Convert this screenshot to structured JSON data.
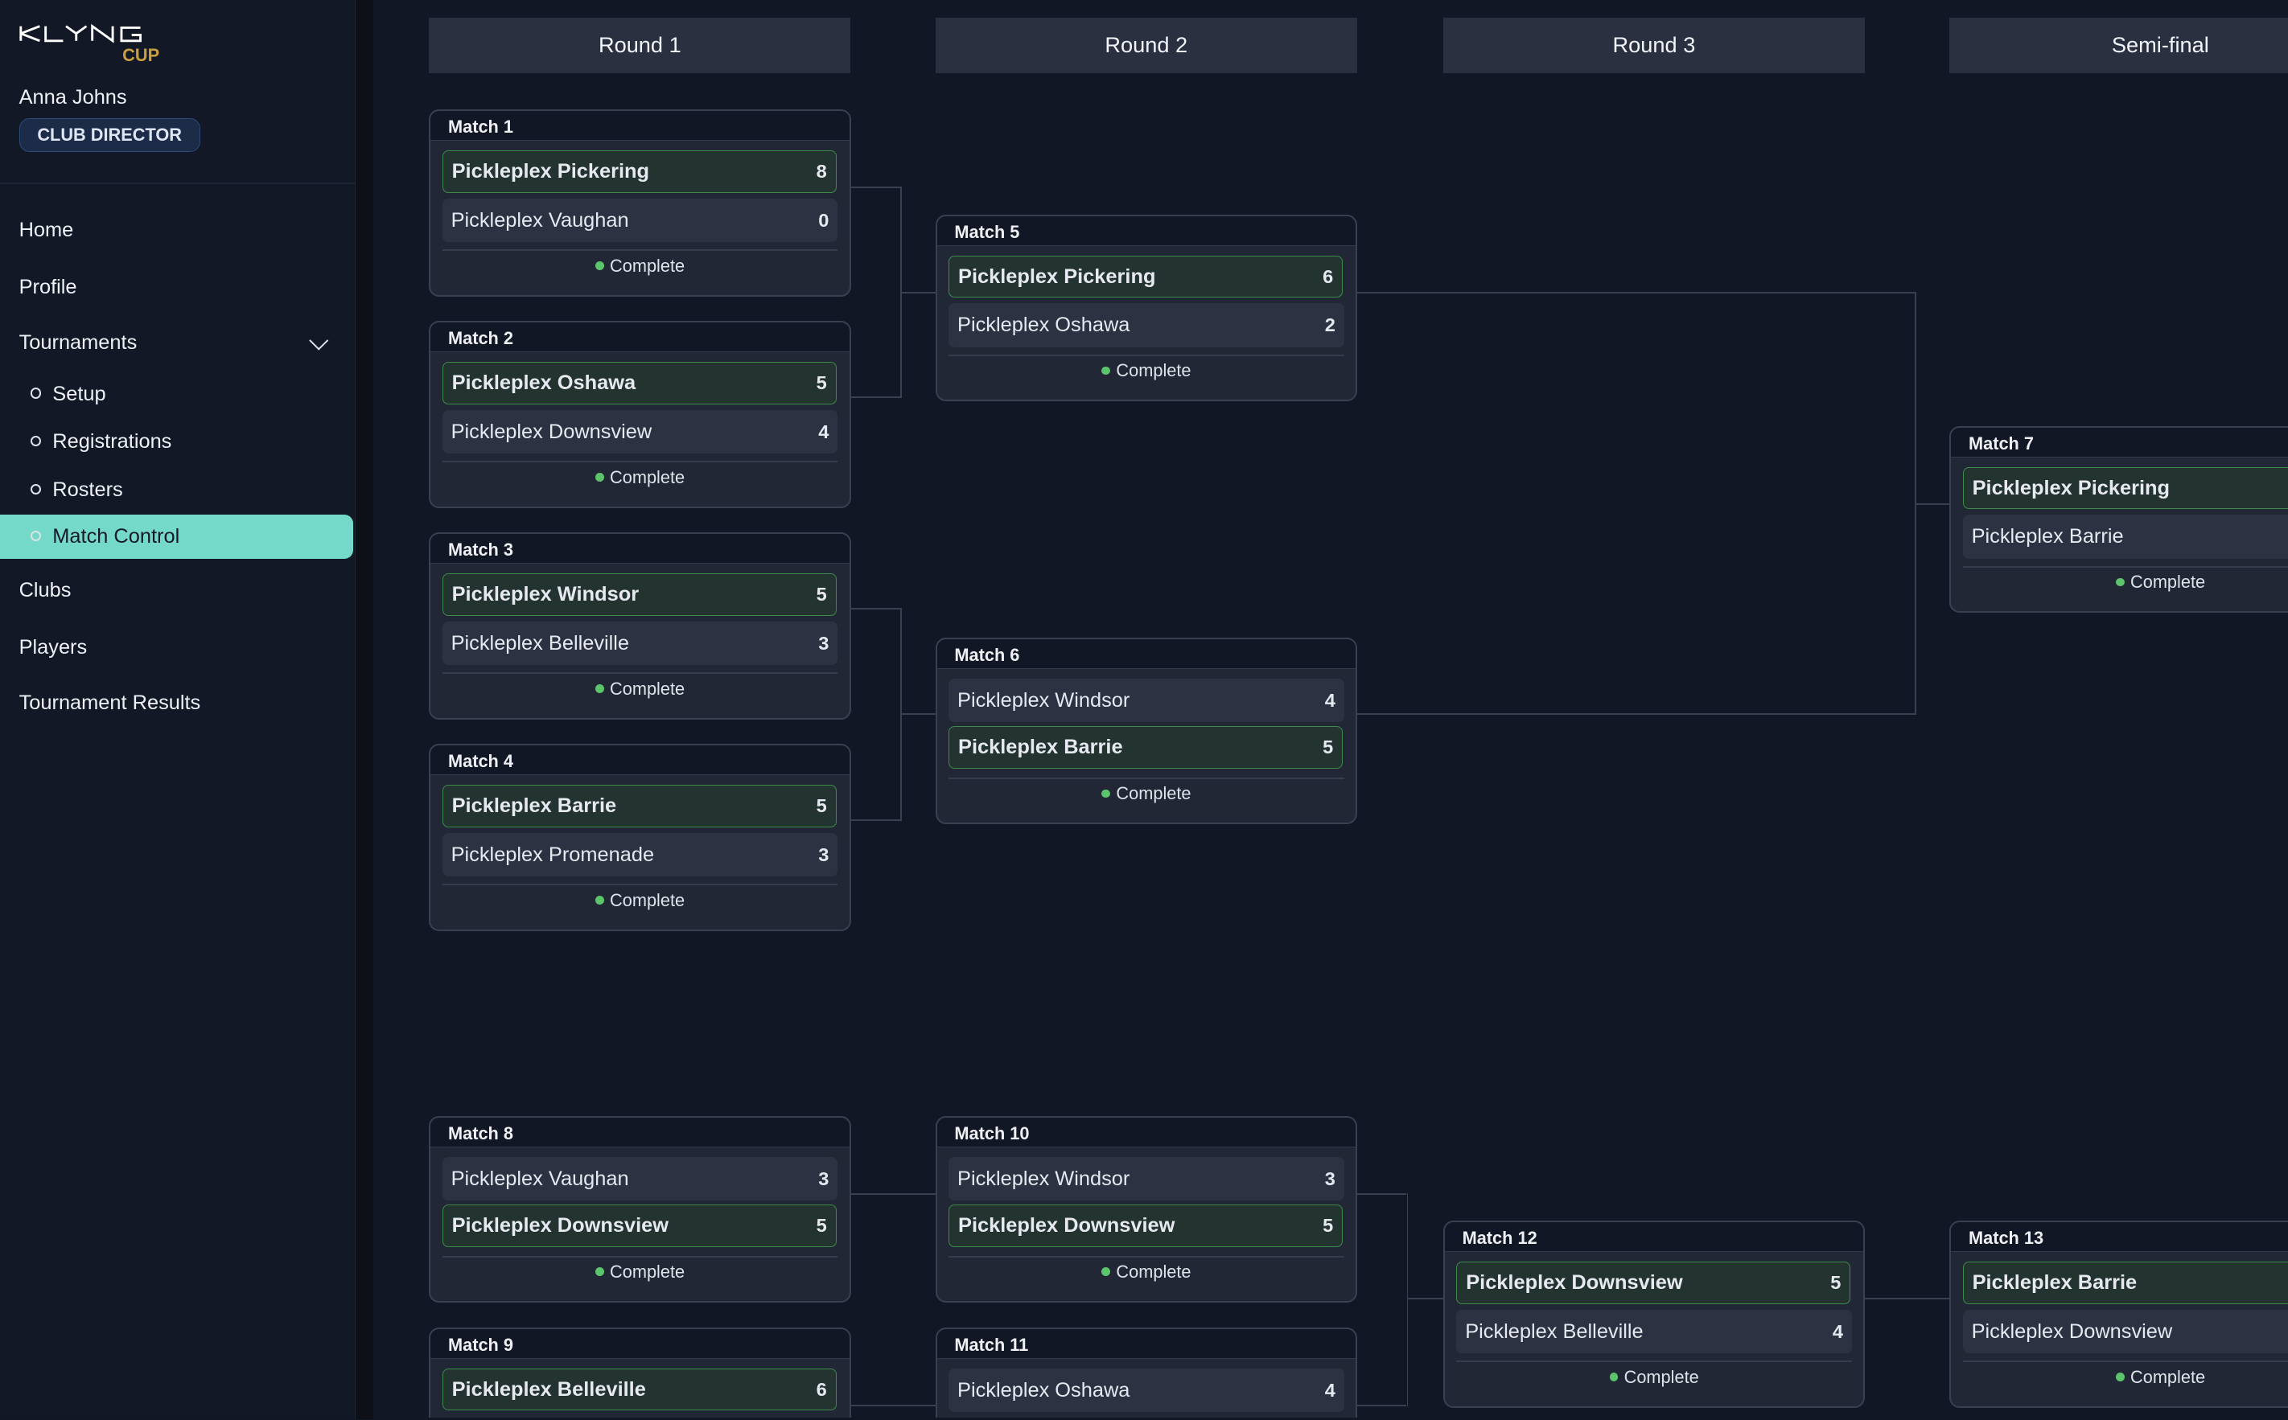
{
  "brand": {
    "logo_text": "KLYNG",
    "logo_sub": "CUP",
    "accent": "#c9a040"
  },
  "user": {
    "name": "Anna Johns",
    "role": "CLUB DIRECTOR"
  },
  "nav": {
    "home": "Home",
    "profile": "Profile",
    "tournaments": "Tournaments",
    "setup": "Setup",
    "registrations": "Registrations",
    "rosters": "Rosters",
    "match_control": "Match Control",
    "clubs": "Clubs",
    "players": "Players",
    "results": "Tournament Results"
  },
  "rounds": [
    "Round 1",
    "Round 2",
    "Round 3",
    "Semi-final"
  ],
  "status_complete": "Complete",
  "colors": {
    "active_nav": "#74d9c9",
    "winner_border": "#3d8a4a",
    "status_dot": "#5cc46a"
  },
  "matches": [
    {
      "label": "Match 1",
      "teams": [
        [
          "Pickleplex Pickering",
          "8"
        ],
        [
          "Pickleplex Vaughan",
          "0"
        ]
      ],
      "winner": 0
    },
    {
      "label": "Match 2",
      "teams": [
        [
          "Pickleplex Oshawa",
          "5"
        ],
        [
          "Pickleplex Downsview",
          "4"
        ]
      ],
      "winner": 0
    },
    {
      "label": "Match 3",
      "teams": [
        [
          "Pickleplex Windsor",
          "5"
        ],
        [
          "Pickleplex Belleville",
          "3"
        ]
      ],
      "winner": 0
    },
    {
      "label": "Match 4",
      "teams": [
        [
          "Pickleplex Barrie",
          "5"
        ],
        [
          "Pickleplex Promenade",
          "3"
        ]
      ],
      "winner": 0
    },
    {
      "label": "Match 5",
      "teams": [
        [
          "Pickleplex Pickering",
          "6"
        ],
        [
          "Pickleplex Oshawa",
          "2"
        ]
      ],
      "winner": 0
    },
    {
      "label": "Match 6",
      "teams": [
        [
          "Pickleplex Windsor",
          "4"
        ],
        [
          "Pickleplex Barrie",
          "5"
        ]
      ],
      "winner": 1
    },
    {
      "label": "Match 7",
      "teams": [
        [
          "Pickleplex Pickering",
          ""
        ],
        [
          "Pickleplex Barrie",
          ""
        ]
      ],
      "winner": 0
    },
    {
      "label": "Match 8",
      "teams": [
        [
          "Pickleplex Vaughan",
          "3"
        ],
        [
          "Pickleplex Downsview",
          "5"
        ]
      ],
      "winner": 1
    },
    {
      "label": "Match 9",
      "teams": [
        [
          "Pickleplex Belleville",
          "6"
        ],
        [
          "",
          ""
        ]
      ],
      "winner": 0
    },
    {
      "label": "Match 10",
      "teams": [
        [
          "Pickleplex Windsor",
          "3"
        ],
        [
          "Pickleplex Downsview",
          "5"
        ]
      ],
      "winner": 1
    },
    {
      "label": "Match 11",
      "teams": [
        [
          "Pickleplex Oshawa",
          "4"
        ],
        [
          "",
          ""
        ]
      ],
      "winner": 1
    },
    {
      "label": "Match 12",
      "teams": [
        [
          "Pickleplex Downsview",
          "5"
        ],
        [
          "Pickleplex Belleville",
          "4"
        ]
      ],
      "winner": 0
    },
    {
      "label": "Match 13",
      "teams": [
        [
          "Pickleplex Barrie",
          ""
        ],
        [
          "Pickleplex Downsview",
          ""
        ]
      ],
      "winner": 0
    }
  ]
}
